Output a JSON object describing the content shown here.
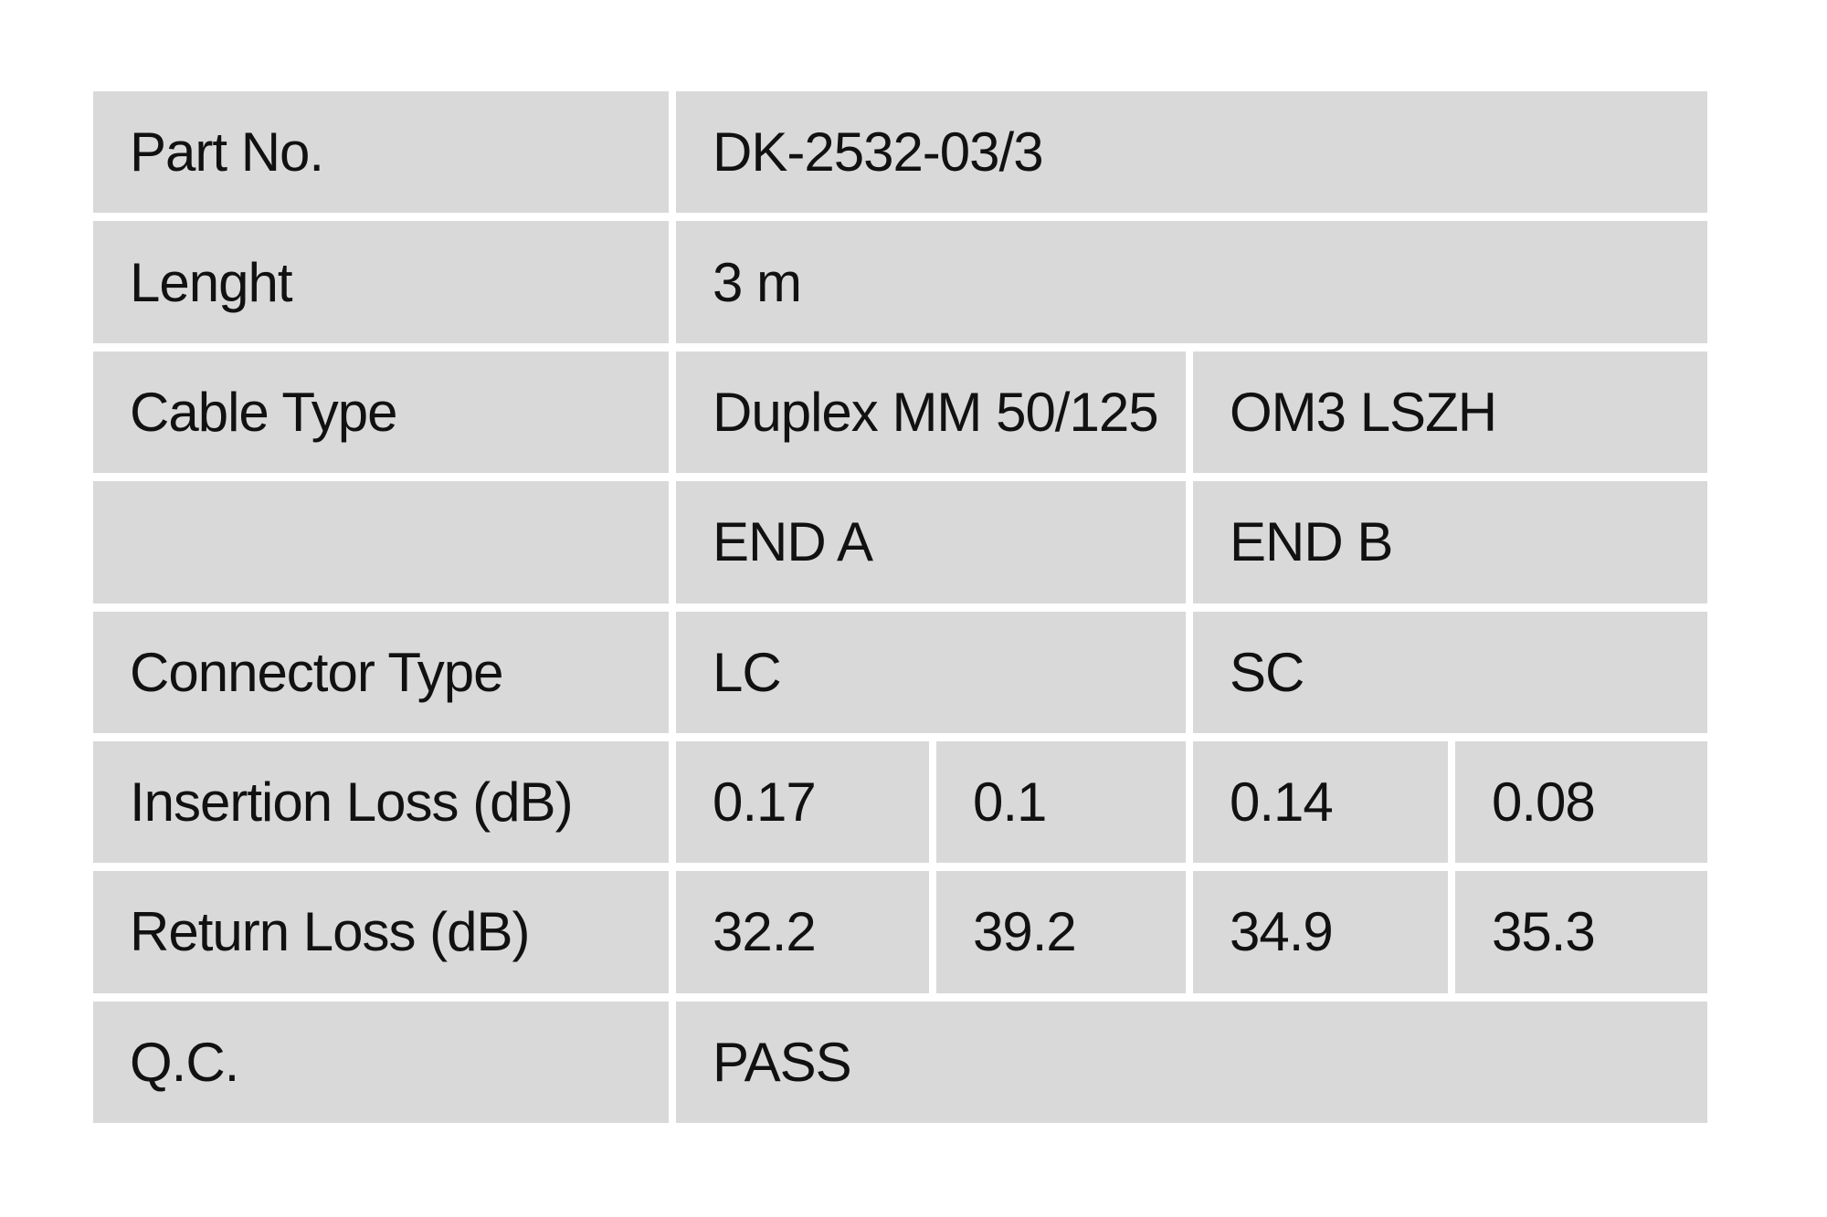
{
  "table": {
    "title_semantic": "fiber-patch-cable-qc-spec-table",
    "colors": {
      "cell_bg": "#d9d9d9",
      "text": "#111111",
      "page_bg": "#ffffff"
    },
    "end_headers": {
      "end_a": "END A",
      "end_b": "END B"
    },
    "rows": [
      {
        "label": "Part No.",
        "cells": [
          {
            "text": "DK-2532-03/3"
          }
        ]
      },
      {
        "label": "Lenght",
        "cells": [
          {
            "text": "3 m"
          }
        ]
      },
      {
        "label": "Cable Type",
        "cells": [
          {
            "text": "Duplex MM 50/125"
          },
          {
            "text": "OM3 LSZH"
          }
        ]
      },
      {
        "label": "",
        "cells": [
          {
            "text": "END A"
          },
          {
            "text": "END B"
          }
        ]
      },
      {
        "label": "Connector Type",
        "cells": [
          {
            "text": "LC"
          },
          {
            "text": "SC"
          }
        ]
      },
      {
        "label": "Insertion Loss (dB)",
        "cells": [
          {
            "text": "0.17"
          },
          {
            "text": "0.1"
          },
          {
            "text": "0.14"
          },
          {
            "text": "0.08"
          }
        ]
      },
      {
        "label": "Return Loss (dB)",
        "cells": [
          {
            "text": "32.2"
          },
          {
            "text": "39.2"
          },
          {
            "text": "34.9"
          },
          {
            "text": "35.3"
          }
        ]
      },
      {
        "label": "Q.C.",
        "cells": [
          {
            "text": "PASS"
          }
        ]
      }
    ]
  }
}
